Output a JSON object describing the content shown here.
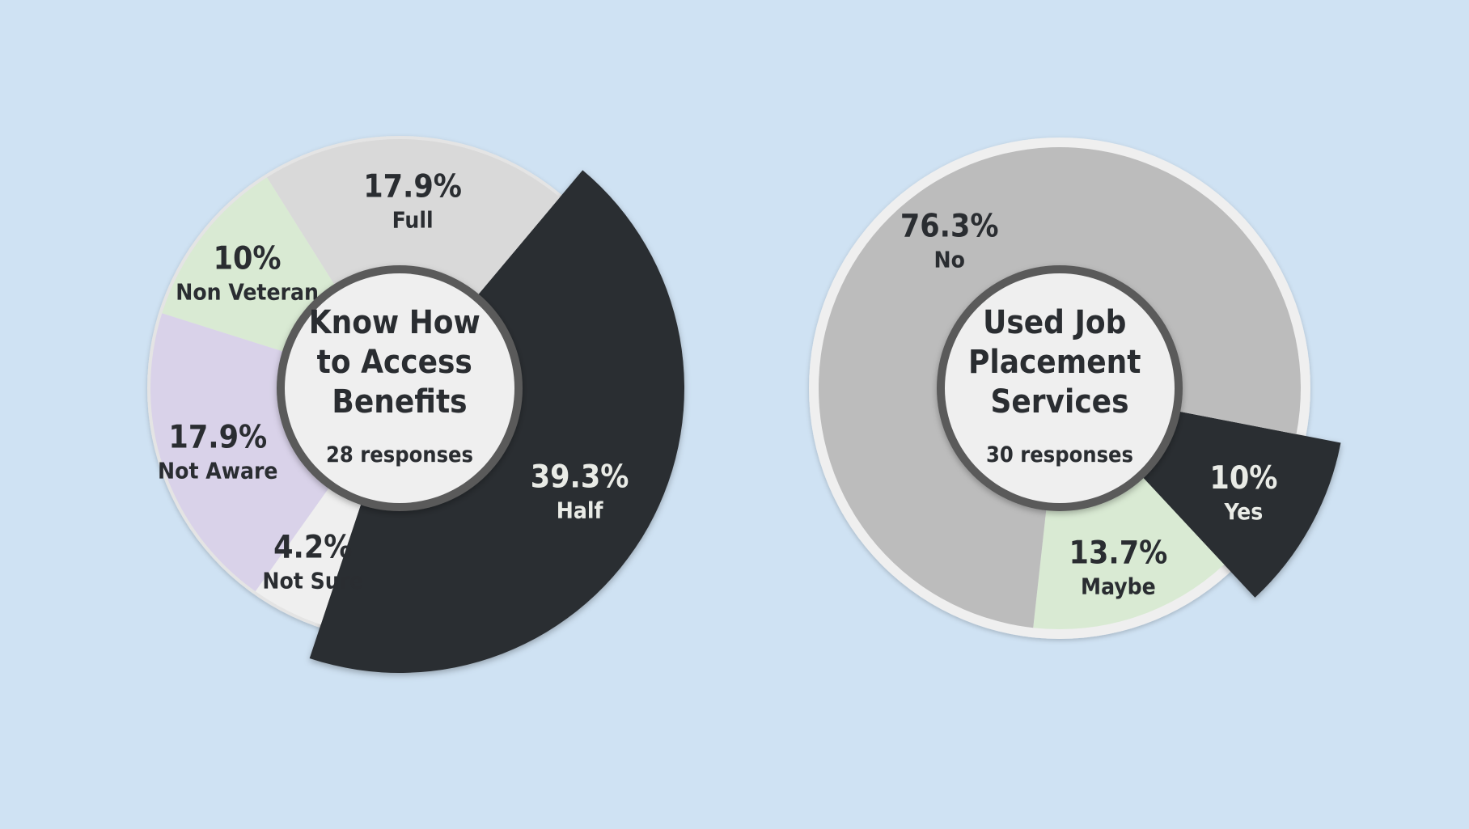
{
  "chart_data": [
    {
      "type": "pie",
      "title": "Know How to Access Benefits",
      "title_lines": [
        "Know How",
        "to Access",
        "Benefits"
      ],
      "subtitle": "28 responses",
      "slices": [
        {
          "label": "Half",
          "value": 39.3,
          "value_label": "39.3%",
          "color": "#2a2d31",
          "text_color": "#e9ebe6",
          "exploded": true
        },
        {
          "label": "Not Sure",
          "value": 4.2,
          "value_label": "4.2%",
          "color": "#efefef",
          "text_color": "#2a2d31",
          "exploded": false
        },
        {
          "label": "Not Aware",
          "value": 17.9,
          "value_label": "17.9%",
          "color": "#d9d2e9",
          "text_color": "#2a2d31",
          "exploded": false
        },
        {
          "label": "Non Veteran",
          "value": 10,
          "value_label": "10%",
          "color": "#d9ead3",
          "text_color": "#2a2d31",
          "exploded": false
        },
        {
          "label": "Full",
          "value": 17.9,
          "value_label": "17.9%",
          "color": "#d9d9d9",
          "text_color": "#2a2d31",
          "exploded": false
        }
      ]
    },
    {
      "type": "pie",
      "title": "Used Job Placement Services",
      "title_lines": [
        "Used Job",
        "Placement",
        "Services"
      ],
      "subtitle": "30 responses",
      "slices": [
        {
          "label": "Yes",
          "value": 10,
          "value_label": "10%",
          "color": "#2a2d31",
          "text_color": "#e9ebe6",
          "exploded": true
        },
        {
          "label": "Maybe",
          "value": 13.7,
          "value_label": "13.7%",
          "color": "#d9ead3",
          "text_color": "#2a2d31",
          "exploded": false
        },
        {
          "label": "No",
          "value": 76.3,
          "value_label": "76.3%",
          "color": "#bcbcbc",
          "text_color": "#2a2d31",
          "exploded": false
        }
      ]
    }
  ]
}
